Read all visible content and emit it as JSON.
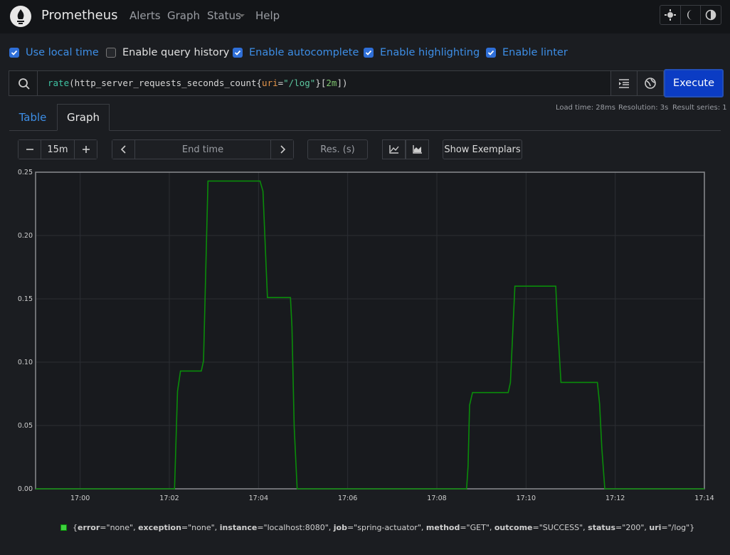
{
  "nav": {
    "brand": "Prometheus",
    "links": [
      "Alerts",
      "Graph",
      "Status",
      "Help"
    ]
  },
  "options": [
    {
      "label": "Use local time",
      "checked": true
    },
    {
      "label": "Enable query history",
      "checked": false
    },
    {
      "label": "Enable autocomplete",
      "checked": true
    },
    {
      "label": "Enable highlighting",
      "checked": true
    },
    {
      "label": "Enable linter",
      "checked": true
    }
  ],
  "query": [
    {
      "text": "rate",
      "color": "#3fc4a4"
    },
    {
      "text": "(http_server_requests_seconds_count{",
      "color": "#d6d6d6"
    },
    {
      "text": "uri",
      "color": "#e5954a"
    },
    {
      "text": "=",
      "color": "#d6d6d6"
    },
    {
      "text": "\"/log\"",
      "color": "#5cc8a0"
    },
    {
      "text": "}[",
      "color": "#d6d6d6"
    },
    {
      "text": "2m",
      "color": "#7ec36e"
    },
    {
      "text": "])",
      "color": "#d6d6d6"
    }
  ],
  "execute": "Execute",
  "stats": [
    "Load time: 28ms",
    "Resolution: 3s",
    "Result series: 1"
  ],
  "tabs": {
    "items": [
      "Table",
      "Graph"
    ],
    "active": 1
  },
  "controls": {
    "range": "15m",
    "end_time": "End time",
    "resolution": "Res. (s)",
    "exemplars": "Show Exemplars"
  },
  "chart_data": {
    "type": "line",
    "x": [
      "16:59:00",
      "17:02:07",
      "17:02:11",
      "17:02:15",
      "17:02:43",
      "17:02:46",
      "17:02:52",
      "17:04:02",
      "17:04:06",
      "17:04:12",
      "17:04:43",
      "17:04:45",
      "17:04:48",
      "17:04:52",
      "17:08:40",
      "17:08:42",
      "17:08:44",
      "17:08:48",
      "17:09:36",
      "17:09:39",
      "17:09:45",
      "17:10:40",
      "17:10:42",
      "17:10:47",
      "17:11:36",
      "17:11:39",
      "17:11:42",
      "17:11:46",
      "17:14:00"
    ],
    "series": [
      {
        "name": "{error=\"none\", exception=\"none\", instance=\"localhost:8080\", job=\"spring-actuator\", method=\"GET\", outcome=\"SUCCESS\", status=\"200\", uri=\"/log\"}",
        "color": "#0a8c0a",
        "values": [
          0,
          0,
          0.077,
          0.093,
          0.093,
          0.101,
          0.243,
          0.243,
          0.235,
          0.151,
          0.151,
          0.128,
          0.049,
          0,
          0,
          0.018,
          0.066,
          0.076,
          0.076,
          0.084,
          0.16,
          0.16,
          0.134,
          0.084,
          0.084,
          0.067,
          0.032,
          0,
          0
        ]
      }
    ],
    "xlim": [
      "16:59:00",
      "17:14:00"
    ],
    "xticks": [
      {
        "value": "17:00:00",
        "label": "17:00"
      },
      {
        "value": "17:02:00",
        "label": "17:02"
      },
      {
        "value": "17:04:00",
        "label": "17:04"
      },
      {
        "value": "17:06:00",
        "label": "17:06"
      },
      {
        "value": "17:08:00",
        "label": "17:08"
      },
      {
        "value": "17:10:00",
        "label": "17:10"
      },
      {
        "value": "17:12:00",
        "label": "17:12"
      },
      {
        "value": "17:14:00",
        "label": "17:14"
      }
    ],
    "ylim": [
      0,
      0.25
    ],
    "yticks": [
      {
        "value": 0,
        "label": "0.00"
      },
      0.05,
      {
        "value": 0.1,
        "label": "0.10"
      },
      0.15,
      {
        "value": 0.2,
        "label": "0.20"
      },
      0.25
    ],
    "grid": true
  }
}
